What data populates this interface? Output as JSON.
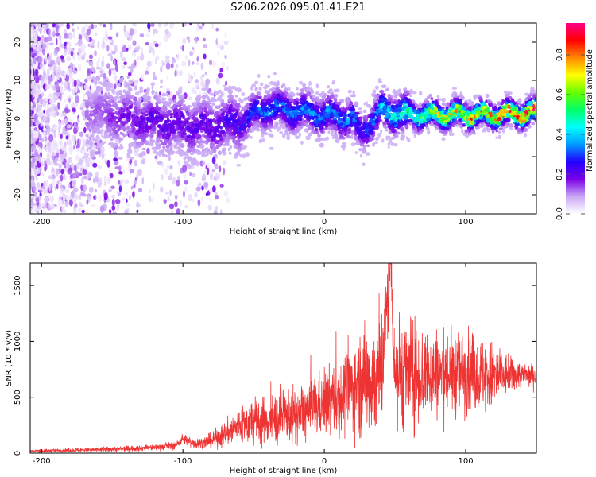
{
  "title": "S206.2026.095.01.41.E21",
  "chart_data": [
    {
      "type": "heatmap",
      "xlabel": "Height of straight line (km)",
      "ylabel": "Frequency (Hz)",
      "xlim": [
        -208,
        150
      ],
      "ylim": [
        -25,
        25
      ],
      "xticks": [
        -200,
        -100,
        0,
        100
      ],
      "yticks": [
        -20,
        -10,
        0,
        10,
        20
      ],
      "colorbar": {
        "label": "Normalized spectral amplitude",
        "range": [
          0,
          0.96
        ],
        "ticks": [
          "0.0",
          "0.2",
          "0.4",
          "0.6",
          "0.8"
        ],
        "colors": [
          "#ffffff",
          "#c9a8f5",
          "#7a00e6",
          "#2200ff",
          "#0099ff",
          "#00ffff",
          "#00ff66",
          "#66ff00",
          "#ffff00",
          "#ff8800",
          "#ff0000",
          "#ff0088"
        ]
      },
      "ridge": {
        "x": [
          -165,
          -140,
          -120,
          -100,
          -80,
          -60,
          -40,
          -20,
          0,
          20,
          25,
          40,
          60,
          80,
          100,
          120,
          150
        ],
        "y": [
          2,
          0,
          -1,
          -2,
          -2,
          -1,
          3,
          2,
          1,
          0,
          -4,
          2,
          1,
          1,
          1,
          1,
          1.5
        ],
        "amp": [
          0.05,
          0.12,
          0.15,
          0.15,
          0.15,
          0.2,
          0.3,
          0.3,
          0.3,
          0.3,
          0.2,
          0.35,
          0.5,
          0.7,
          0.75,
          0.8,
          0.95
        ]
      }
    },
    {
      "type": "line",
      "xlabel": "Height of straight line (km)",
      "ylabel": "SNR (10 * v/v)",
      "xlim": [
        -208,
        150
      ],
      "ylim": [
        0,
        1700
      ],
      "xticks": [
        -200,
        -100,
        0,
        100
      ],
      "yticks": [
        0,
        500,
        1000,
        1500
      ],
      "series": [
        {
          "name": "SNR",
          "color": "#ee3333",
          "x": [
            -208,
            -180,
            -150,
            -120,
            -105,
            -100,
            -90,
            -80,
            -70,
            -60,
            -50,
            -40,
            -30,
            -20,
            -10,
            0,
            10,
            20,
            30,
            40,
            47,
            50,
            60,
            70,
            80,
            90,
            100,
            110,
            120,
            130,
            140,
            150
          ],
          "y": [
            20,
            25,
            35,
            50,
            70,
            130,
            80,
            110,
            170,
            250,
            280,
            300,
            320,
            340,
            380,
            450,
            500,
            580,
            650,
            700,
            1680,
            720,
            730,
            700,
            720,
            700,
            720,
            700,
            680,
            700,
            700,
            690
          ],
          "spread": [
            10,
            15,
            20,
            25,
            30,
            40,
            40,
            60,
            100,
            150,
            180,
            200,
            220,
            220,
            240,
            260,
            300,
            350,
            450,
            500,
            300,
            480,
            430,
            380,
            350,
            330,
            320,
            300,
            280,
            150,
            100,
            80
          ]
        }
      ]
    }
  ]
}
